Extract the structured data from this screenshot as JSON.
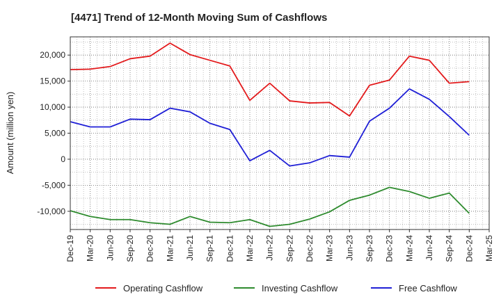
{
  "chart_data": {
    "type": "line",
    "title": "[4471]  Trend of 12-Month Moving Sum of Cashflows",
    "ylabel": "Amount (million yen)",
    "xlabel": "",
    "ylim": [
      -13500,
      23500
    ],
    "yticks": [
      20000,
      15000,
      10000,
      5000,
      0,
      -5000,
      -10000
    ],
    "ytick_labels": [
      "20,000",
      "15,000",
      "10,000",
      "5,000",
      "0",
      "-5,000",
      "-10,000"
    ],
    "categories": [
      "Dec-19",
      "Mar-20",
      "Jun-20",
      "Sep-20",
      "Dec-20",
      "Mar-21",
      "Jun-21",
      "Sep-21",
      "Dec-21",
      "Mar-22",
      "Jun-22",
      "Sep-22",
      "Dec-22",
      "Mar-23",
      "Jun-23",
      "Sep-23",
      "Dec-23",
      "Mar-24",
      "Jun-24",
      "Sep-24",
      "Dec-24",
      "Mar-25"
    ],
    "grid": true,
    "legend_position": "bottom",
    "series": [
      {
        "name": "Operating Cashflow",
        "color": "#e31a1c",
        "values": [
          17200,
          17300,
          17800,
          19300,
          19800,
          22300,
          20100,
          19000,
          17900,
          11300,
          14600,
          11200,
          10800,
          10900,
          8300,
          14200,
          15200,
          19800,
          19000,
          14600,
          14900,
          null
        ]
      },
      {
        "name": "Investing Cashflow",
        "color": "#2e8b2e",
        "values": [
          -9900,
          -11000,
          -11600,
          -11600,
          -12200,
          -12500,
          -11000,
          -12100,
          -12200,
          -11600,
          -12900,
          -12500,
          -11500,
          -10100,
          -7900,
          -6900,
          -5400,
          -6200,
          -7500,
          -6500,
          -10400,
          null
        ]
      },
      {
        "name": "Free Cashflow",
        "color": "#1f1fd6",
        "values": [
          7200,
          6200,
          6200,
          7700,
          7600,
          9800,
          9100,
          6900,
          5700,
          -300,
          1700,
          -1300,
          -700,
          700,
          400,
          7300,
          9800,
          13500,
          11500,
          8200,
          4600,
          null
        ]
      }
    ]
  }
}
